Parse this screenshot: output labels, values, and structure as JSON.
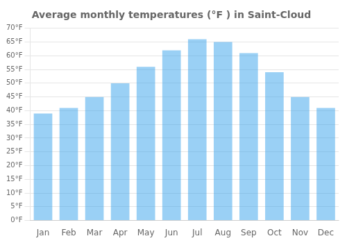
{
  "chart_data": {
    "type": "bar",
    "title": "Average monthly temperatures (°F ) in Saint-Cloud",
    "categories": [
      "Jan",
      "Feb",
      "Mar",
      "Apr",
      "May",
      "Jun",
      "Jul",
      "Aug",
      "Sep",
      "Oct",
      "Nov",
      "Dec"
    ],
    "values": [
      39,
      41,
      45,
      50,
      56,
      62,
      66,
      65,
      61,
      54,
      45,
      41
    ],
    "ylim": [
      0,
      70
    ],
    "yticks": [
      {
        "value": 0,
        "label": "0°F"
      },
      {
        "value": 5,
        "label": "5°F"
      },
      {
        "value": 10,
        "label": "10°F"
      },
      {
        "value": 15,
        "label": "15°F"
      },
      {
        "value": 20,
        "label": "20°F"
      },
      {
        "value": 25,
        "label": "25°F"
      },
      {
        "value": 30,
        "label": "30°F"
      },
      {
        "value": 35,
        "label": "35°F"
      },
      {
        "value": 40,
        "label": "40°F"
      },
      {
        "value": 45,
        "label": "45°F"
      },
      {
        "value": 50,
        "label": "50°F"
      },
      {
        "value": 55,
        "label": "55°F"
      },
      {
        "value": 60,
        "label": "60°F"
      },
      {
        "value": 65,
        "label": "65°F"
      },
      {
        "value": 70,
        "label": "70°F"
      }
    ],
    "grid": true
  }
}
